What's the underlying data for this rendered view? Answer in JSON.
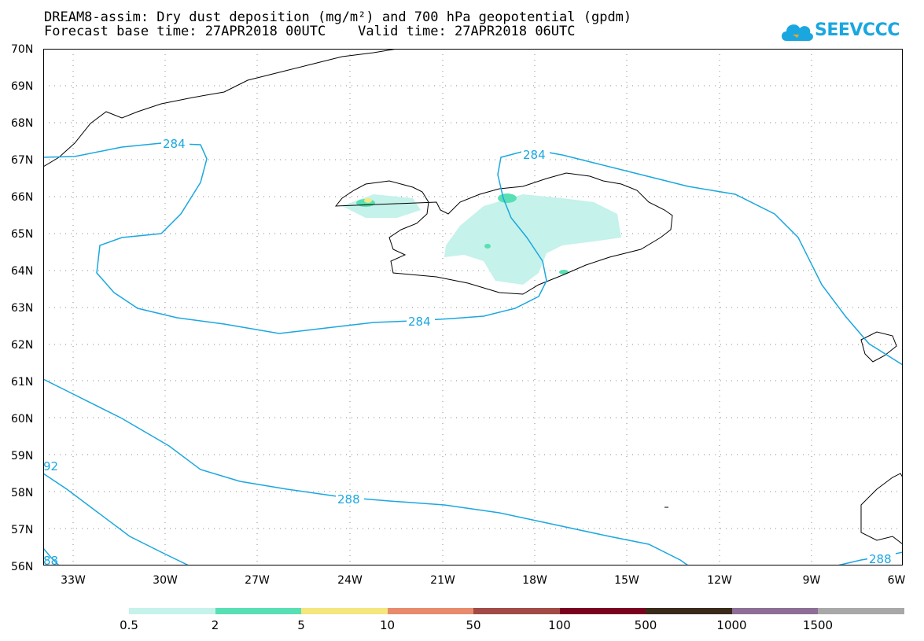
{
  "title_line1": "DREAM8-assim: Dry dust deposition (mg/m²) and 700 hPa geopotential (gpdm)",
  "title_line2": "Forecast base time: 27APR2018 00UTC    Valid time: 27APR2018 06UTC",
  "logo_text": "SEEVCCC",
  "lat_labels": [
    "70N",
    "69N",
    "68N",
    "67N",
    "66N",
    "65N",
    "64N",
    "63N",
    "62N",
    "61N",
    "60N",
    "59N",
    "58N",
    "57N",
    "56N"
  ],
  "lon_labels": [
    "33W",
    "30W",
    "27W",
    "24W",
    "21W",
    "18W",
    "15W",
    "12W",
    "9W",
    "6W"
  ],
  "contour_labels": {
    "c284a": "284",
    "c284b": "284",
    "c284c": "284",
    "c288a": "288",
    "c288b": "288",
    "c292": "92",
    "c288c": "88"
  },
  "colorbar": {
    "labels": [
      "0.5",
      "2",
      "5",
      "10",
      "50",
      "100",
      "500",
      "1000",
      "1500"
    ],
    "colors": [
      "#c5f2ea",
      "#58e0b4",
      "#f5e67e",
      "#e78b6c",
      "#a24a45",
      "#7a0020",
      "#3a2a1a",
      "#8d6e97",
      "#a8a8a8"
    ]
  },
  "line_color": "#1aa7e0"
}
